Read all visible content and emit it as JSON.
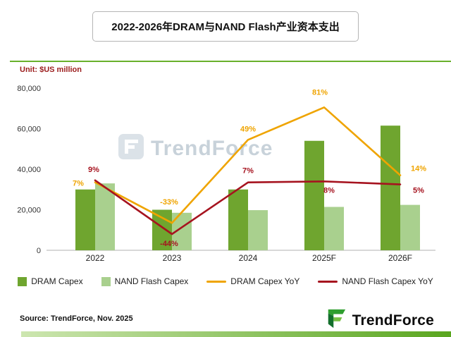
{
  "page": {
    "title": "2022-2026年DRAM与NAND Flash产业资本支出",
    "unit_label": "Unit: $US million",
    "source": "Source: TrendForce, Nov. 2025",
    "watermark_text": "TrendForce",
    "brand_text": "TrendForce"
  },
  "colors": {
    "dram_bar": "#6fa52f",
    "nand_bar": "#a9d08e",
    "dram_yoy_line": "#efa400",
    "nand_yoy_line": "#a6131f",
    "title_divider": "#69b02c",
    "unit_text": "#9b1c1c",
    "bottom_strip_start": "#cde6b0",
    "bottom_strip_end": "#5aa61f"
  },
  "chart_data": {
    "type": "bar",
    "subtype": "combo-bar-line",
    "title": "2022-2026年DRAM与NAND Flash产业资本支出",
    "unit": "$US million",
    "categories": [
      "2022",
      "2023",
      "2024",
      "2025F",
      "2026F"
    ],
    "bar_series": [
      {
        "name": "DRAM Capex",
        "color": "#6fa52f",
        "values": [
          30000,
          20000,
          30000,
          54000,
          61500
        ]
      },
      {
        "name": "NAND Flash Capex",
        "color": "#a9d08e",
        "values": [
          33000,
          18500,
          19800,
          21400,
          22400
        ]
      }
    ],
    "line_series": [
      {
        "name": "DRAM Capex YoY",
        "color": "#efa400",
        "values_pct": [
          7,
          -33,
          49,
          81,
          14
        ]
      },
      {
        "name": "NAND Flash Capex YoY",
        "color": "#a6131f",
        "values_pct": [
          9,
          -44,
          7,
          8,
          5
        ]
      }
    ],
    "y_axis": {
      "min": 0,
      "max": 80000,
      "ticks": [
        0,
        20000,
        40000,
        60000,
        80000
      ]
    },
    "secondary_axis": {
      "min_pct": -60,
      "max_pct": 100,
      "visible": false
    },
    "grid": false,
    "legend_position": "bottom"
  }
}
